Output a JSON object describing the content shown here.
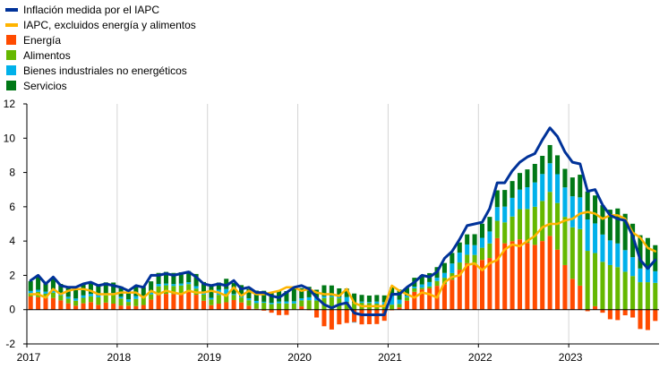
{
  "chart_data": {
    "type": "bar",
    "stacked": true,
    "title": "",
    "xlabel": "",
    "ylabel": "",
    "ylim": [
      -2,
      12
    ],
    "yticks": [
      -2,
      0,
      2,
      4,
      6,
      8,
      10,
      12
    ],
    "xticks": [
      "2017",
      "2018",
      "2019",
      "2020",
      "2021",
      "2022",
      "2023"
    ],
    "grid": "vertical at year starts",
    "legend_position": "top-left",
    "x": [
      "2017-01",
      "2017-02",
      "2017-03",
      "2017-04",
      "2017-05",
      "2017-06",
      "2017-07",
      "2017-08",
      "2017-09",
      "2017-10",
      "2017-11",
      "2017-12",
      "2018-01",
      "2018-02",
      "2018-03",
      "2018-04",
      "2018-05",
      "2018-06",
      "2018-07",
      "2018-08",
      "2018-09",
      "2018-10",
      "2018-11",
      "2018-12",
      "2019-01",
      "2019-02",
      "2019-03",
      "2019-04",
      "2019-05",
      "2019-06",
      "2019-07",
      "2019-08",
      "2019-09",
      "2019-10",
      "2019-11",
      "2019-12",
      "2020-01",
      "2020-02",
      "2020-03",
      "2020-04",
      "2020-05",
      "2020-06",
      "2020-07",
      "2020-08",
      "2020-09",
      "2020-10",
      "2020-11",
      "2020-12",
      "2021-01",
      "2021-02",
      "2021-03",
      "2021-04",
      "2021-05",
      "2021-06",
      "2021-07",
      "2021-08",
      "2021-09",
      "2021-10",
      "2021-11",
      "2021-12",
      "2022-01",
      "2022-02",
      "2022-03",
      "2022-04",
      "2022-05",
      "2022-06",
      "2022-07",
      "2022-08",
      "2022-09",
      "2022-10",
      "2022-11",
      "2022-12",
      "2023-01",
      "2023-02",
      "2023-03",
      "2023-04",
      "2023-05",
      "2023-06",
      "2023-07",
      "2023-08",
      "2023-09",
      "2023-10",
      "2023-11",
      "2023-12"
    ],
    "bar_series": [
      {
        "name": "Energía",
        "color": "#ff4b00",
        "values": [
          0.77,
          0.73,
          0.67,
          0.68,
          0.54,
          0.37,
          0.23,
          0.37,
          0.44,
          0.28,
          0.41,
          0.35,
          0.24,
          0.23,
          0.21,
          0.27,
          0.59,
          0.84,
          0.92,
          0.91,
          0.93,
          1.04,
          0.87,
          0.52,
          0.26,
          0.35,
          0.43,
          0.56,
          0.42,
          0.23,
          0.05,
          -0.06,
          -0.18,
          -0.32,
          -0.31,
          0.02,
          0.19,
          -0.03,
          -0.46,
          -0.97,
          -1.16,
          -0.86,
          -0.78,
          -0.73,
          -0.86,
          -0.85,
          -0.84,
          -0.65,
          -0.04,
          0.13,
          0.52,
          1.04,
          1.18,
          1.24,
          1.39,
          1.49,
          1.75,
          2.33,
          2.71,
          2.6,
          2.9,
          3.01,
          4.17,
          3.87,
          3.99,
          4.1,
          3.89,
          3.78,
          4.0,
          4.3,
          3.5,
          2.6,
          1.8,
          1.4,
          -0.09,
          0.2,
          -0.18,
          -0.56,
          -0.61,
          -0.33,
          -0.46,
          -1.13,
          -1.19,
          -0.66
        ]
      },
      {
        "name": "Alimentos",
        "color": "#65b800",
        "values": [
          0.19,
          0.31,
          0.26,
          0.31,
          0.28,
          0.27,
          0.29,
          0.32,
          0.34,
          0.44,
          0.42,
          0.5,
          0.41,
          0.22,
          0.42,
          0.45,
          0.3,
          0.52,
          0.5,
          0.47,
          0.48,
          0.45,
          0.36,
          0.36,
          0.33,
          0.51,
          0.5,
          0.29,
          0.29,
          0.32,
          0.33,
          0.4,
          0.32,
          0.37,
          0.36,
          0.34,
          0.35,
          0.55,
          0.53,
          0.68,
          0.73,
          0.66,
          0.46,
          0.39,
          0.4,
          0.39,
          0.35,
          0.3,
          0.29,
          0.2,
          0.19,
          0.2,
          0.1,
          0.11,
          0.28,
          0.37,
          0.38,
          0.42,
          0.49,
          0.59,
          0.71,
          0.85,
          1.01,
          1.22,
          1.44,
          1.76,
          1.98,
          2.22,
          2.34,
          2.57,
          2.72,
          2.81,
          3.0,
          3.3,
          3.43,
          3.1,
          2.79,
          2.6,
          2.48,
          2.21,
          1.96,
          1.6,
          1.6,
          1.56
        ]
      },
      {
        "name": "Bienes industriales no energéticos",
        "color": "#00b1ea",
        "values": [
          0.13,
          0.12,
          0.12,
          0.11,
          0.1,
          0.11,
          0.13,
          0.14,
          0.14,
          0.12,
          0.12,
          0.12,
          0.1,
          0.15,
          0.16,
          0.1,
          0.1,
          0.14,
          0.1,
          0.11,
          0.11,
          0.11,
          0.14,
          0.13,
          0.1,
          0.3,
          0.27,
          0.06,
          0.06,
          0.11,
          0.13,
          0.06,
          0.08,
          0.1,
          0.12,
          0.13,
          0.12,
          0.17,
          0.17,
          0.1,
          0.07,
          0.07,
          0.27,
          -0.02,
          0.07,
          0.06,
          0.12,
          0.14,
          0.51,
          0.25,
          0.1,
          0.1,
          0.19,
          0.26,
          0.19,
          0.28,
          0.56,
          0.58,
          0.6,
          0.57,
          0.58,
          0.7,
          0.8,
          0.92,
          1.09,
          1.14,
          1.27,
          1.42,
          1.57,
          1.67,
          1.68,
          1.72,
          1.81,
          1.85,
          1.83,
          1.73,
          1.59,
          1.44,
          1.38,
          1.26,
          1.1,
          0.8,
          0.78,
          0.68
        ]
      },
      {
        "name": "Servicios",
        "color": "#007816",
        "values": [
          0.57,
          0.77,
          0.53,
          0.71,
          0.58,
          0.54,
          0.62,
          0.64,
          0.63,
          0.56,
          0.64,
          0.61,
          0.6,
          0.58,
          0.62,
          0.5,
          0.66,
          0.64,
          0.68,
          0.65,
          0.66,
          0.65,
          0.71,
          0.6,
          0.71,
          0.42,
          0.6,
          0.64,
          0.66,
          0.54,
          0.6,
          0.64,
          0.57,
          0.62,
          0.6,
          0.76,
          0.59,
          0.61,
          0.46,
          0.64,
          0.61,
          0.51,
          0.5,
          0.55,
          0.39,
          0.37,
          0.38,
          0.39,
          0.5,
          0.59,
          0.47,
          0.52,
          0.55,
          0.52,
          0.62,
          0.58,
          0.62,
          0.59,
          0.59,
          0.64,
          0.82,
          0.85,
          0.98,
          0.97,
          0.98,
          0.97,
          1.04,
          1.08,
          1.06,
          1.06,
          1.1,
          1.08,
          1.1,
          1.32,
          1.63,
          1.63,
          1.71,
          1.79,
          2.04,
          2.12,
          1.95,
          1.94,
          1.8,
          1.52
        ]
      }
    ],
    "line_series": [
      {
        "name": "Inflación medida por el IAPC",
        "color": "#003299",
        "values": [
          1.7,
          2.0,
          1.5,
          1.9,
          1.4,
          1.3,
          1.3,
          1.5,
          1.6,
          1.4,
          1.5,
          1.4,
          1.3,
          1.1,
          1.4,
          1.3,
          2.0,
          2.0,
          2.1,
          2.0,
          2.1,
          2.2,
          1.9,
          1.5,
          1.4,
          1.5,
          1.4,
          1.7,
          1.2,
          1.3,
          1.0,
          1.0,
          0.8,
          0.7,
          1.0,
          1.3,
          1.4,
          1.2,
          0.7,
          0.3,
          0.1,
          0.3,
          0.4,
          -0.2,
          -0.3,
          -0.3,
          -0.3,
          -0.3,
          0.9,
          0.9,
          1.3,
          1.6,
          2.0,
          1.9,
          2.2,
          3.0,
          3.4,
          4.1,
          4.9,
          5.0,
          5.1,
          5.9,
          7.4,
          7.4,
          8.1,
          8.6,
          8.9,
          9.1,
          9.9,
          10.6,
          10.1,
          9.2,
          8.6,
          8.5,
          6.9,
          7.0,
          6.1,
          5.5,
          5.3,
          5.2,
          4.3,
          2.9,
          2.4,
          2.9
        ]
      },
      {
        "name": "IAPC, excluidos energía y alimentos",
        "color": "#ffb400",
        "values": [
          0.9,
          0.9,
          0.7,
          1.2,
          0.9,
          1.1,
          1.2,
          1.2,
          1.1,
          0.9,
          0.9,
          0.9,
          1.0,
          1.0,
          1.0,
          0.7,
          1.1,
          0.9,
          1.1,
          1.0,
          0.9,
          1.1,
          1.0,
          1.0,
          1.1,
          1.0,
          0.8,
          1.3,
          0.8,
          1.1,
          0.9,
          0.9,
          1.0,
          1.1,
          1.3,
          1.3,
          1.1,
          1.2,
          1.0,
          0.9,
          0.9,
          0.8,
          1.2,
          0.4,
          0.2,
          0.2,
          0.2,
          0.2,
          1.4,
          1.1,
          0.9,
          0.7,
          1.0,
          0.9,
          0.7,
          1.6,
          1.9,
          2.0,
          2.6,
          2.7,
          2.3,
          2.7,
          2.9,
          3.5,
          3.8,
          3.7,
          4.0,
          4.3,
          4.8,
          5.0,
          5.0,
          5.2,
          5.3,
          5.6,
          5.7,
          5.6,
          5.3,
          5.5,
          5.5,
          5.3,
          4.5,
          4.2,
          3.6,
          3.4
        ]
      }
    ],
    "legend": [
      {
        "label": "Inflación medida por el IAPC",
        "color": "#003299",
        "kind": "line"
      },
      {
        "label": "IAPC, excluidos energía y alimentos",
        "color": "#ffb400",
        "kind": "line"
      },
      {
        "label": "Energía",
        "color": "#ff4b00",
        "kind": "bar"
      },
      {
        "label": "Alimentos",
        "color": "#65b800",
        "kind": "bar"
      },
      {
        "label": "Bienes industriales no energéticos",
        "color": "#00b1ea",
        "kind": "bar"
      },
      {
        "label": "Servicios",
        "color": "#007816",
        "kind": "bar"
      }
    ]
  }
}
